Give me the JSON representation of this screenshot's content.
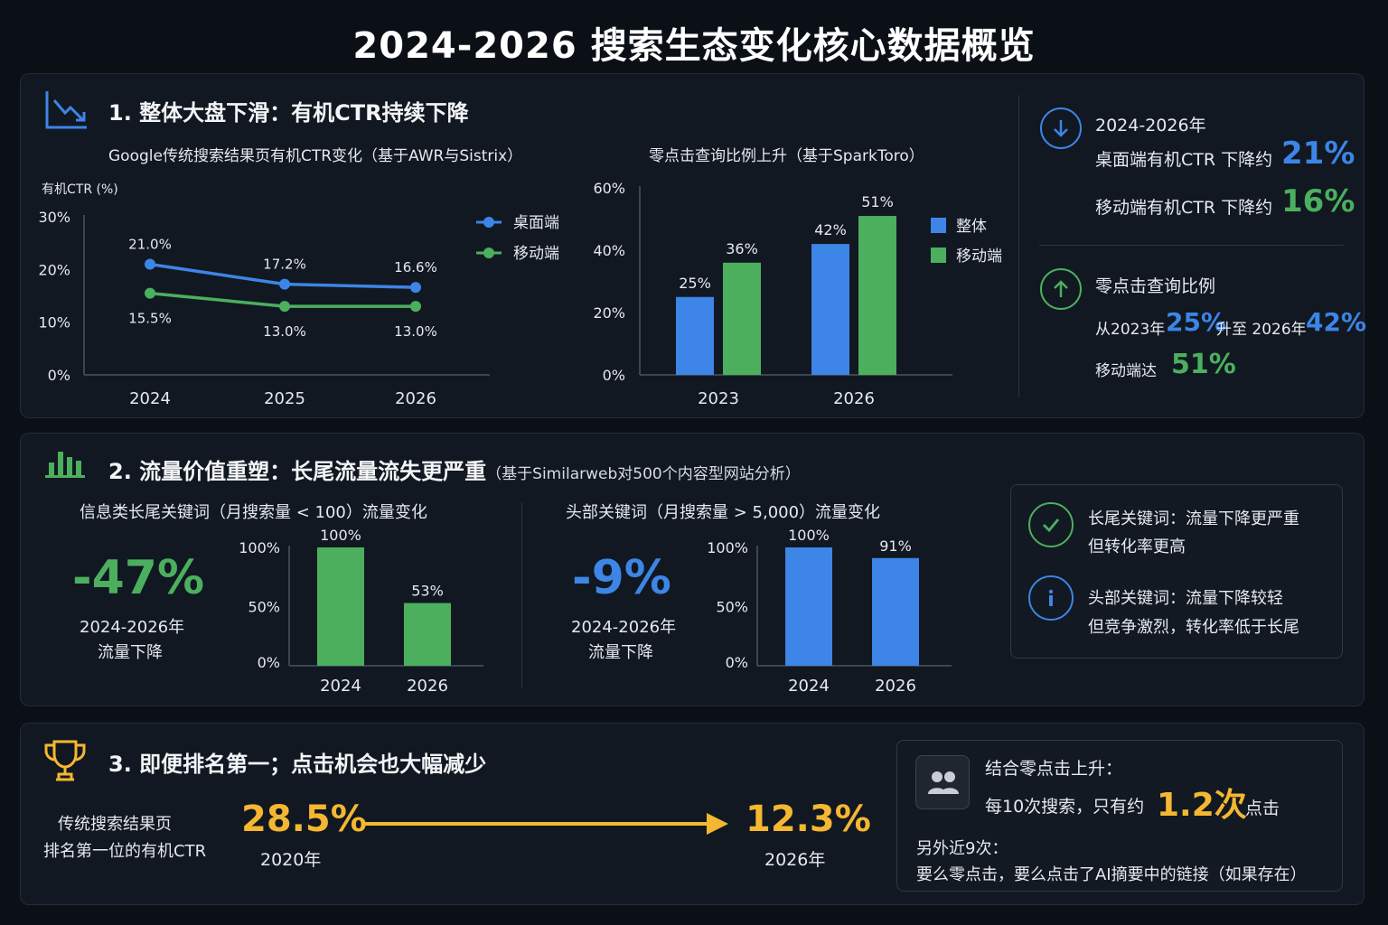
{
  "page_title": "2024-2026 搜索生态变化核心数据概览",
  "section1": {
    "title": "1. 整体大盘下滑：有机CTR持续下降",
    "icon": "trend-down-icon",
    "ctr_chart_title": "Google传统搜索结果页有机CTR变化（基于AWR与Sistrix）",
    "zero_chart_title": "零点击查询比例上升（基于SparkToro）",
    "summary": {
      "period": "2024-2026年",
      "desktop_label": "桌面端有机CTR 下降约",
      "desktop_value": "21%",
      "mobile_label": "移动端有机CTR 下降约",
      "mobile_value": "16%",
      "zero_title": "零点击查询比例",
      "from_label": "从2023年",
      "from_value": "25%",
      "to_label": "升至 2026年",
      "to_value": "42%",
      "mobile_reach_label": "移动端达",
      "mobile_reach_value": "51%"
    }
  },
  "section2": {
    "title": "2. 流量价值重塑：长尾流量流失更严重",
    "note": "（基于Similarweb对500个内容型网站分析）",
    "longtail": {
      "chart_title": "信息类长尾关键词（月搜索量 < 100）流量变化",
      "big_value": "-47%",
      "caption1": "2024-2026年",
      "caption2": "流量下降"
    },
    "head": {
      "chart_title": "头部关键词（月搜索量 > 5,000）流量变化",
      "big_value": "-9%",
      "caption1": "2024-2026年",
      "caption2": "流量下降"
    },
    "insights": {
      "longtail_line1": "长尾关键词：流量下降更严重",
      "longtail_line2": "但转化率更高",
      "head_line1": "头部关键词：流量下降较轻",
      "head_line2": "但竞争激烈，转化率低于长尾"
    }
  },
  "section3": {
    "title": "3. 即便排名第一；点击机会也大幅减少",
    "label1": "传统搜索结果页",
    "label2": "排名第一位的有机CTR",
    "from_value": "28.5%",
    "from_year": "2020年",
    "to_value": "12.3%",
    "to_year": "2026年",
    "box": {
      "line1": "结合零点击上升：",
      "line2_prefix": "每10次搜索，只有约",
      "line2_value": "1.2次",
      "line2_suffix": "点击",
      "line3": "另外近9次：",
      "line4": "要么零点击，要么点击了AI摘要中的链接（如果存在）"
    }
  },
  "colors": {
    "blue": "#3d85e6",
    "green": "#4caf5e",
    "orange": "#f5b731",
    "background": "#0b1017",
    "panel": "#111821"
  },
  "chart_data": [
    {
      "type": "line",
      "title": "Google传统搜索结果页有机CTR变化（基于AWR与Sistrix）",
      "ylabel": "有机CTR (%)",
      "x": [
        "2024",
        "2025",
        "2026"
      ],
      "yticks": [
        "0%",
        "10%",
        "20%",
        "30%"
      ],
      "ylim": [
        0,
        30
      ],
      "legend": "right",
      "series": [
        {
          "name": "桌面端",
          "values": [
            21.0,
            17.2,
            16.6
          ],
          "labels": [
            "21.0%",
            "17.2%",
            "16.6%"
          ],
          "color": "#3d85e6"
        },
        {
          "name": "移动端",
          "values": [
            15.5,
            13.0,
            13.0
          ],
          "labels": [
            "15.5%",
            "13.0%",
            "13.0%"
          ],
          "color": "#4caf5e"
        }
      ]
    },
    {
      "type": "bar",
      "title": "零点击查询比例上升（基于SparkToro）",
      "categories": [
        "2023",
        "2026"
      ],
      "yticks": [
        "0%",
        "20%",
        "40%",
        "60%"
      ],
      "ylim": [
        0,
        60
      ],
      "legend": "right",
      "series": [
        {
          "name": "整体",
          "values": [
            25,
            42
          ],
          "labels": [
            "25%",
            "42%"
          ],
          "color": "#3d85e6"
        },
        {
          "name": "移动端",
          "values": [
            36,
            51
          ],
          "labels": [
            "36%",
            "51%"
          ],
          "color": "#4caf5e"
        }
      ]
    },
    {
      "type": "bar",
      "title": "信息类长尾关键词（月搜索量 < 100）流量变化",
      "categories": [
        "2024",
        "2026"
      ],
      "yticks": [
        "0%",
        "50%",
        "100%"
      ],
      "ylim": [
        0,
        100
      ],
      "values": [
        100,
        53
      ],
      "labels": [
        "100%",
        "53%"
      ],
      "color": "#4caf5e"
    },
    {
      "type": "bar",
      "title": "头部关键词（月搜索量 > 5,000）流量变化",
      "categories": [
        "2024",
        "2026"
      ],
      "yticks": [
        "0%",
        "50%",
        "100%"
      ],
      "ylim": [
        0,
        100
      ],
      "values": [
        100,
        91
      ],
      "labels": [
        "100%",
        "91%"
      ],
      "color": "#3d85e6"
    }
  ]
}
